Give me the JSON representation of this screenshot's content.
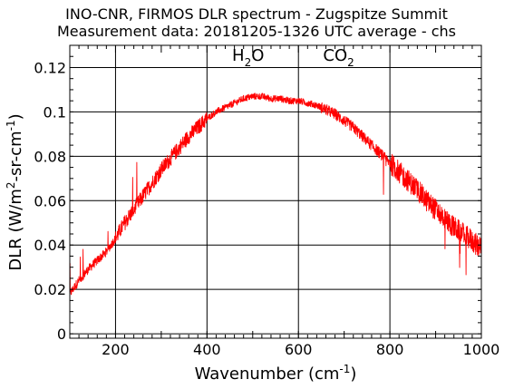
{
  "chart_data": {
    "type": "line",
    "title": "INO-CNR, FIRMOS DLR spectrum - Zugspitze Summit",
    "subtitle": "Measurement data: 20181205-1326 UTC average - chs",
    "xlabel": {
      "text": "Wavenumber (cm",
      "sup": "-1",
      "close": ")"
    },
    "ylabel": {
      "prefix": "DLR (W/m",
      "sup1": "2",
      "middle": "-sr-cm",
      "sup2": "-1",
      "close": ")"
    },
    "xlim": [
      100,
      1000
    ],
    "ylim": [
      -0.002,
      0.13
    ],
    "x_ticks": [
      200,
      400,
      600,
      800,
      1000
    ],
    "y_ticks": [
      0,
      0.02,
      0.04,
      0.06,
      0.08,
      0.1,
      0.12
    ],
    "y_tick_labels": [
      "0",
      "0.02",
      "0.04",
      "0.06",
      "0.08",
      "0.1",
      "0.12"
    ],
    "grid": true,
    "annotations": [
      {
        "base": "H",
        "sub": "2",
        "rest": "O",
        "x": 490,
        "y": 0.123
      },
      {
        "base": "CO",
        "sub": "2",
        "rest": "",
        "x": 688,
        "y": 0.123
      }
    ],
    "series": [
      {
        "color": "#ff0000",
        "x": [
          100,
          120,
          140,
          160,
          180,
          200,
          220,
          240,
          260,
          280,
          300,
          320,
          340,
          360,
          380,
          400,
          420,
          440,
          460,
          480,
          500,
          520,
          540,
          560,
          580,
          600,
          620,
          640,
          660,
          680,
          700,
          720,
          740,
          760,
          780,
          800,
          820,
          840,
          860,
          880,
          900,
          920,
          940,
          960,
          980,
          1000
        ],
        "y": [
          0.018,
          0.024,
          0.029,
          0.033,
          0.037,
          0.043,
          0.05,
          0.056,
          0.062,
          0.068,
          0.074,
          0.079,
          0.084,
          0.089,
          0.093,
          0.097,
          0.1,
          0.102,
          0.104,
          0.106,
          0.107,
          0.107,
          0.106,
          0.106,
          0.105,
          0.105,
          0.104,
          0.103,
          0.101,
          0.099,
          0.096,
          0.093,
          0.089,
          0.085,
          0.081,
          0.077,
          0.073,
          0.069,
          0.065,
          0.06,
          0.056,
          0.052,
          0.048,
          0.045,
          0.042,
          0.038
        ]
      }
    ]
  }
}
